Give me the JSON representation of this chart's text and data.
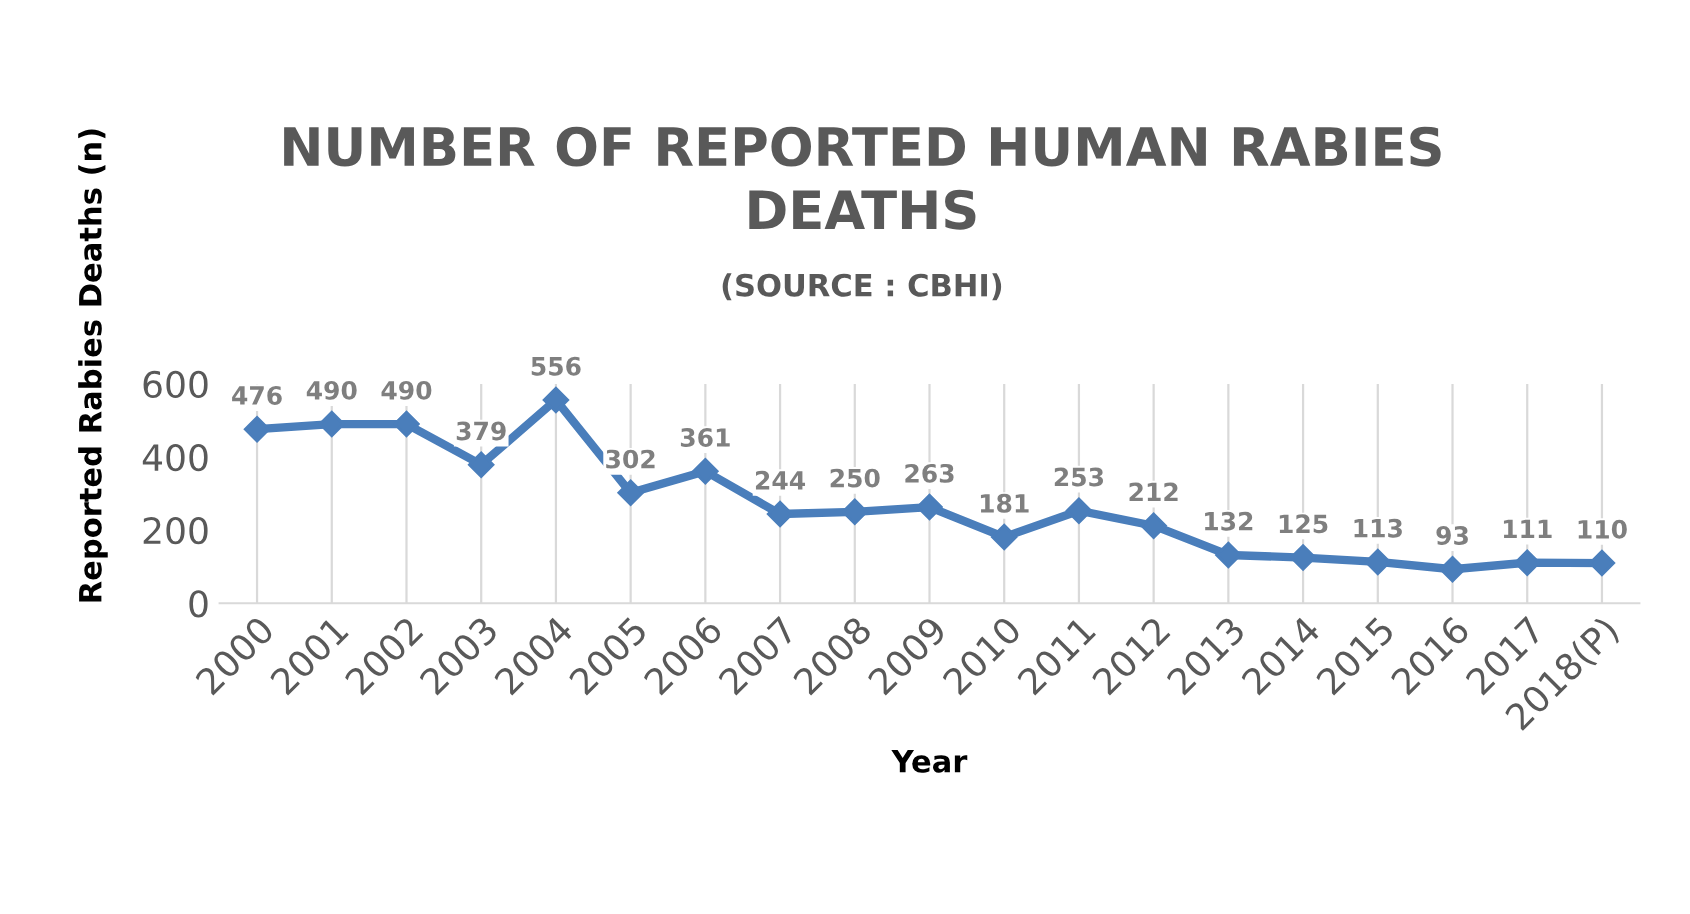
{
  "chart_data": {
    "type": "line",
    "title": "NUMBER OF REPORTED HUMAN RABIES\nDEATHS",
    "subtitle": "(SOURCE : CBHI)",
    "xlabel": "Year",
    "ylabel": "Reported Rabies Deaths (n)",
    "categories": [
      "2000",
      "2001",
      "2002",
      "2003",
      "2004",
      "2005",
      "2006",
      "2007",
      "2008",
      "2009",
      "2010",
      "2011",
      "2012",
      "2013",
      "2014",
      "2015",
      "2016",
      "2017",
      "2018(P)"
    ],
    "series": [
      {
        "color": "#4a7ebb",
        "values": [
          476,
          490,
          490,
          379,
          556,
          302,
          361,
          244,
          250,
          263,
          181,
          253,
          212,
          132,
          125,
          113,
          93,
          111,
          110
        ]
      }
    ],
    "ylim": [
      0,
      600
    ],
    "yticks": [
      0,
      200,
      400,
      600
    ],
    "grid": "x",
    "marker": "diamond",
    "line_style": "solid",
    "data_labels": true,
    "legend": false
  }
}
